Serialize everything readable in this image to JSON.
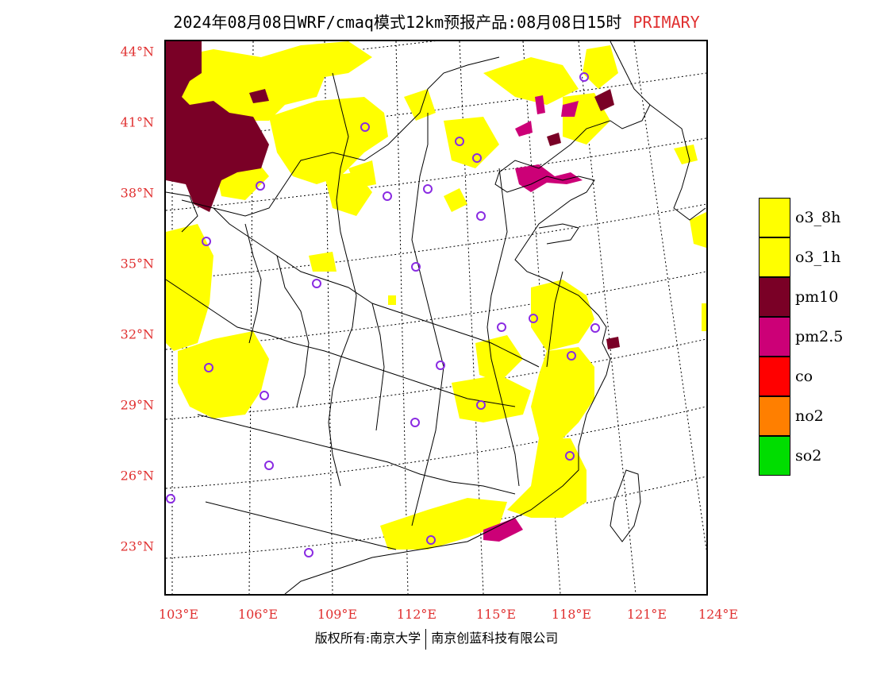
{
  "title": {
    "main": "2024年08月08日WRF/cmaq模式12km预报产品:08月08日15时",
    "tag": "PRIMARY",
    "tag_color": "#e03030"
  },
  "map": {
    "lat_labels": [
      "44°N",
      "41°N",
      "38°N",
      "35°N",
      "32°N",
      "29°N",
      "26°N",
      "23°N"
    ],
    "lon_labels": [
      "103°E",
      "106°E",
      "109°E",
      "112°E",
      "115°E",
      "118°E",
      "121°E",
      "124°E"
    ],
    "axis_label_color": "#e03030",
    "station_marker": "purple-circle",
    "station_color": "#8a2be2"
  },
  "legend": {
    "items": [
      {
        "label": "o3_8h",
        "color": "#ffff00"
      },
      {
        "label": "o3_1h",
        "color": "#ffff00"
      },
      {
        "label": "pm10",
        "color": "#7a0026"
      },
      {
        "label": "pm2.5",
        "color": "#cc0077"
      },
      {
        "label": "co",
        "color": "#ff0000"
      },
      {
        "label": "no2",
        "color": "#ff7f00"
      },
      {
        "label": "so2",
        "color": "#00dd00"
      }
    ]
  },
  "footer": {
    "left": "版权所有:南京大学",
    "right": "南京创蓝科技有限公司"
  }
}
